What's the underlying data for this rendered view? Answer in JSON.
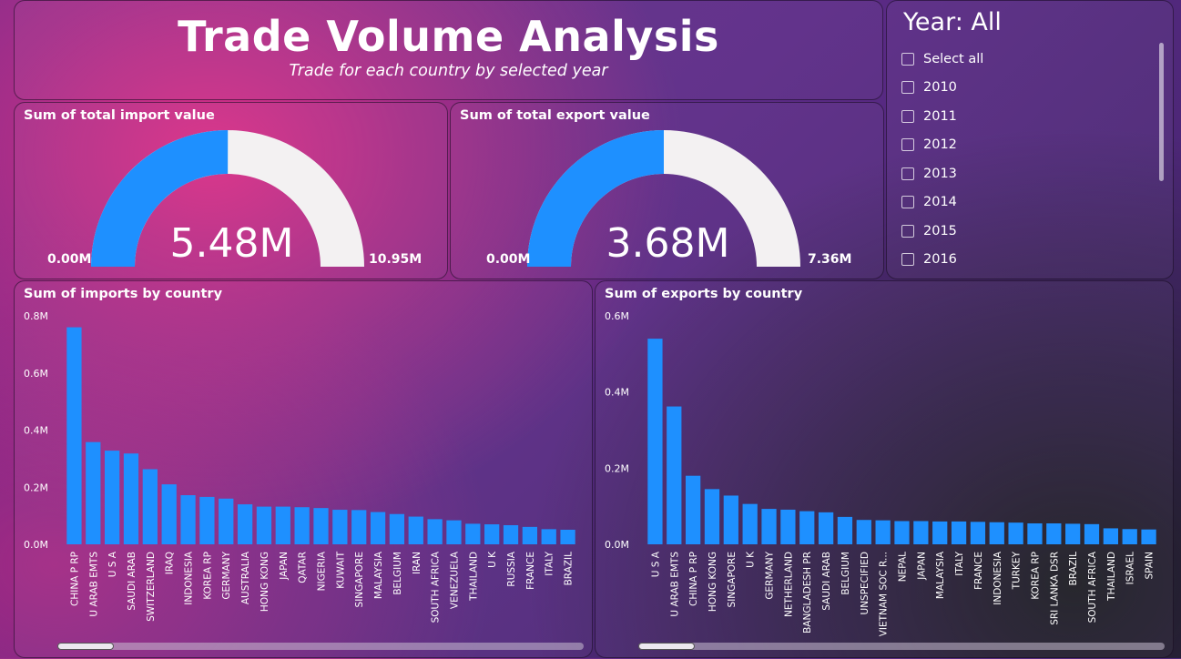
{
  "header": {
    "title": "Trade Volume Analysis",
    "subtitle": "Trade for each country by selected year"
  },
  "gauges": {
    "import": {
      "title": "Sum of total import value",
      "value_label": "5.48M",
      "min_label": "0.00M",
      "max_label": "10.95M",
      "value": 5.48,
      "min": 0,
      "max": 10.95
    },
    "export": {
      "title": "Sum of total export value",
      "value_label": "3.68M",
      "min_label": "0.00M",
      "max_label": "7.36M",
      "value": 3.68,
      "min": 0,
      "max": 7.36
    }
  },
  "slicer": {
    "title": "Year: All",
    "items": [
      "Select all",
      "2010",
      "2011",
      "2012",
      "2013",
      "2014",
      "2015",
      "2016"
    ]
  },
  "colors": {
    "bar": "#1e90ff",
    "gauge_fill": "#1e90ff",
    "gauge_track": "#f3f1f2"
  },
  "chart_data": [
    {
      "type": "bar",
      "title": "Sum of imports by country",
      "categories": [
        "CHINA P RP",
        "U ARAB EMTS",
        "U S A",
        "SAUDI ARAB",
        "SWITZERLAND",
        "IRAQ",
        "INDONESIA",
        "KOREA RP",
        "GERMANY",
        "AUSTRALIA",
        "HONG KONG",
        "JAPAN",
        "QATAR",
        "NIGERIA",
        "KUWAIT",
        "SINGAPORE",
        "MALAYSIA",
        "BELGIUM",
        "IRAN",
        "SOUTH AFRICA",
        "VENEZUELA",
        "THAILAND",
        "U K",
        "RUSSIA",
        "FRANCE",
        "ITALY",
        "BRAZIL"
      ],
      "values": [
        760000,
        358000,
        328000,
        318000,
        263000,
        210000,
        172000,
        166000,
        160000,
        140000,
        132000,
        132000,
        130000,
        127000,
        121000,
        120000,
        113000,
        106000,
        97000,
        88000,
        84000,
        72000,
        70000,
        67000,
        61000,
        53000,
        51000
      ],
      "ylim": [
        0,
        800000
      ],
      "yticks": [
        0,
        200000,
        400000,
        600000,
        800000
      ],
      "ytick_labels": [
        "0.0M",
        "0.2M",
        "0.4M",
        "0.6M",
        "0.8M"
      ],
      "grid": false
    },
    {
      "type": "bar",
      "title": "Sum of exports by country",
      "categories": [
        "U S A",
        "U ARAB EMTS",
        "CHINA P RP",
        "HONG KONG",
        "SINGAPORE",
        "U K",
        "GERMANY",
        "NETHERLAND",
        "BANGLADESH PR",
        "SAUDI ARAB",
        "BELGIUM",
        "UNSPECIFIED",
        "VIETNAM SOC R...",
        "NEPAL",
        "JAPAN",
        "MALAYSIA",
        "ITALY",
        "FRANCE",
        "INDONESIA",
        "TURKEY",
        "KOREA RP",
        "SRI LANKA DSR",
        "BRAZIL",
        "SOUTH AFRICA",
        "THAILAND",
        "ISRAEL",
        "SPAIN"
      ],
      "values": [
        540000,
        362000,
        180000,
        145000,
        128000,
        106000,
        93000,
        91000,
        87000,
        84000,
        72000,
        64000,
        63000,
        61000,
        61000,
        60000,
        60000,
        59000,
        58000,
        57000,
        55000,
        55000,
        54000,
        53000,
        42000,
        40000,
        39000
      ],
      "ylim": [
        0,
        600000
      ],
      "yticks": [
        0,
        200000,
        400000,
        600000
      ],
      "ytick_labels": [
        "0.0M",
        "0.2M",
        "0.4M",
        "0.6M"
      ],
      "grid": false
    }
  ]
}
